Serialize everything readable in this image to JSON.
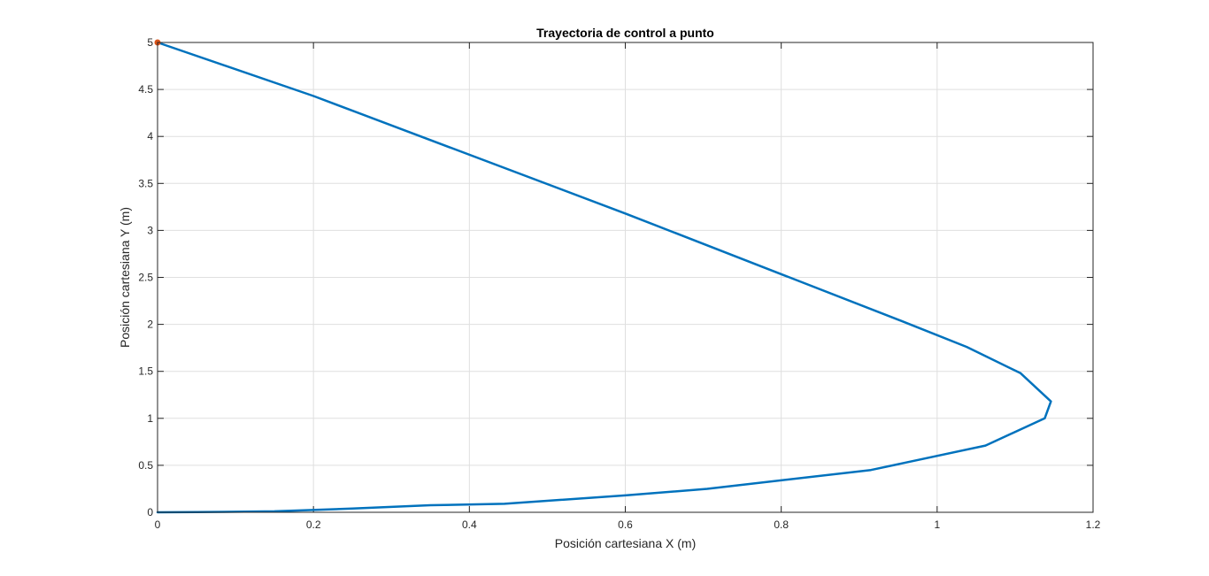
{
  "chart_data": {
    "type": "line",
    "title": "Trayectoria de control a punto",
    "xlabel": "Posición cartesiana X (m)",
    "ylabel": "Posición cartesiana Y (m)",
    "xlim": [
      0,
      1.2
    ],
    "ylim": [
      0,
      5
    ],
    "xticks": [
      0,
      0.2,
      0.4,
      0.6,
      0.8,
      1,
      1.2
    ],
    "xtick_labels": [
      "0",
      "0.2",
      "0.4",
      "0.6",
      "0.8",
      "1",
      "1.2"
    ],
    "yticks": [
      0,
      0.5,
      1,
      1.5,
      2,
      2.5,
      3,
      3.5,
      4,
      4.5,
      5
    ],
    "ytick_labels": [
      "0",
      "0.5",
      "1",
      "1.5",
      "2",
      "2.5",
      "3",
      "3.5",
      "4",
      "4.5",
      "5"
    ],
    "grid": true,
    "legend": "none",
    "series": [
      {
        "color": "#0072bd",
        "x": [
          0,
          0.05,
          0.15,
          0.25,
          0.35,
          0.445,
          0.6,
          0.705,
          0.915,
          1.062,
          1.138,
          1.146,
          1.107,
          1.038,
          0.95,
          0.6,
          0.2,
          0
        ],
        "y": [
          0,
          0.002,
          0.01,
          0.04,
          0.075,
          0.09,
          0.18,
          0.25,
          0.45,
          0.71,
          1.0,
          1.18,
          1.48,
          1.76,
          2.05,
          3.18,
          4.43,
          5.0
        ]
      }
    ],
    "markers": [
      {
        "x": 0,
        "y": 5,
        "color": "#d95319"
      }
    ]
  }
}
